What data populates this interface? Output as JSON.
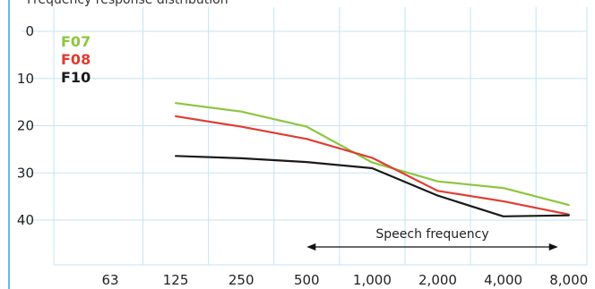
{
  "chart_data": {
    "type": "line",
    "title": "Frequency response distribution",
    "x": [
      "63",
      "125",
      "250",
      "500",
      "1,000",
      "2,000",
      "4,000",
      "8,000"
    ],
    "y_ticks": [
      "0",
      "10",
      "20",
      "30",
      "40"
    ],
    "ylim": [
      0,
      40
    ],
    "y_inverted": true,
    "grid": true,
    "legend_placement": "top-left",
    "series": [
      {
        "name": "F07",
        "color": "#8cc63f",
        "values": [
          null,
          15.2,
          17.0,
          20.2,
          27.8,
          31.8,
          33.2,
          36.8
        ]
      },
      {
        "name": "F08",
        "color": "#e03c31",
        "values": [
          null,
          18.0,
          20.2,
          22.8,
          26.8,
          33.8,
          36.0,
          38.8
        ]
      },
      {
        "name": "F10",
        "color": "#1a1a1a",
        "values": [
          null,
          26.4,
          26.9,
          27.7,
          29.0,
          34.8,
          39.2,
          39.0
        ]
      }
    ],
    "annotation": {
      "text": "Speech frequency",
      "from": "500",
      "to": "8,000"
    }
  },
  "colors": {
    "grid": "#c5e3f3",
    "frame": "#6fb8de",
    "axis_text": "#222222"
  }
}
